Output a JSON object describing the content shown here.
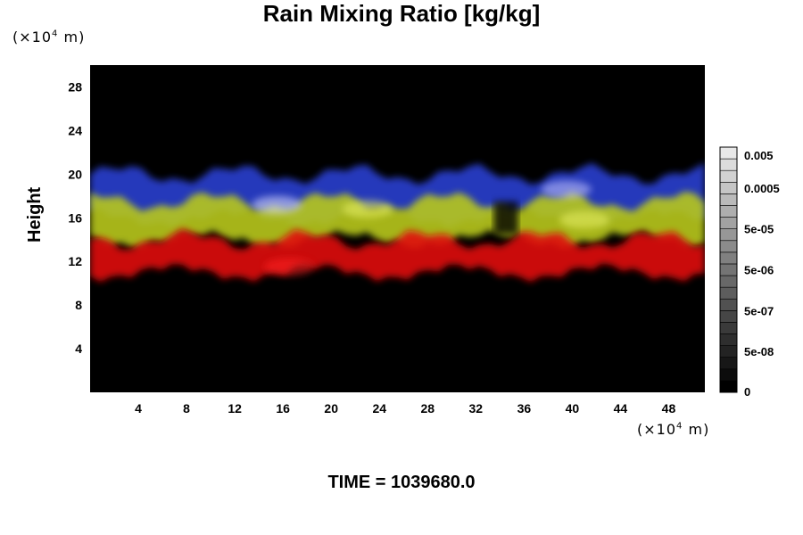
{
  "chart_data": {
    "type": "heatmap",
    "title": "Rain Mixing Ratio [kg/kg]",
    "ylabel": "Height",
    "xlabel": "",
    "x_unit": "(×10",
    "y_unit": "(×10",
    "unit_exp": "4",
    "unit_tail": "m)",
    "x_ticks": [
      4,
      8,
      12,
      16,
      20,
      24,
      28,
      32,
      36,
      40,
      44,
      48
    ],
    "y_ticks": [
      4,
      8,
      12,
      16,
      20,
      24,
      28
    ],
    "xlim": [
      0,
      51
    ],
    "ylim": [
      0,
      30
    ],
    "colorbar": {
      "labels": [
        "0.005",
        "0.0005",
        "5e-05",
        "5e-06",
        "5e-07",
        "5e-08",
        "0"
      ],
      "levels": 21,
      "min_color": "#000000",
      "max_color": "#f0f0f0"
    },
    "layers": [
      {
        "name": "blue",
        "color": "#2b3fd0",
        "y_bottom": 16,
        "y_top": 20
      },
      {
        "name": "yellow",
        "color": "#b8c81a",
        "y_bottom": 14,
        "y_top": 17.5
      },
      {
        "name": "red",
        "color": "#e01010",
        "y_bottom": 11,
        "y_top": 14
      }
    ],
    "time_label": "TIME = 1039680.0"
  }
}
